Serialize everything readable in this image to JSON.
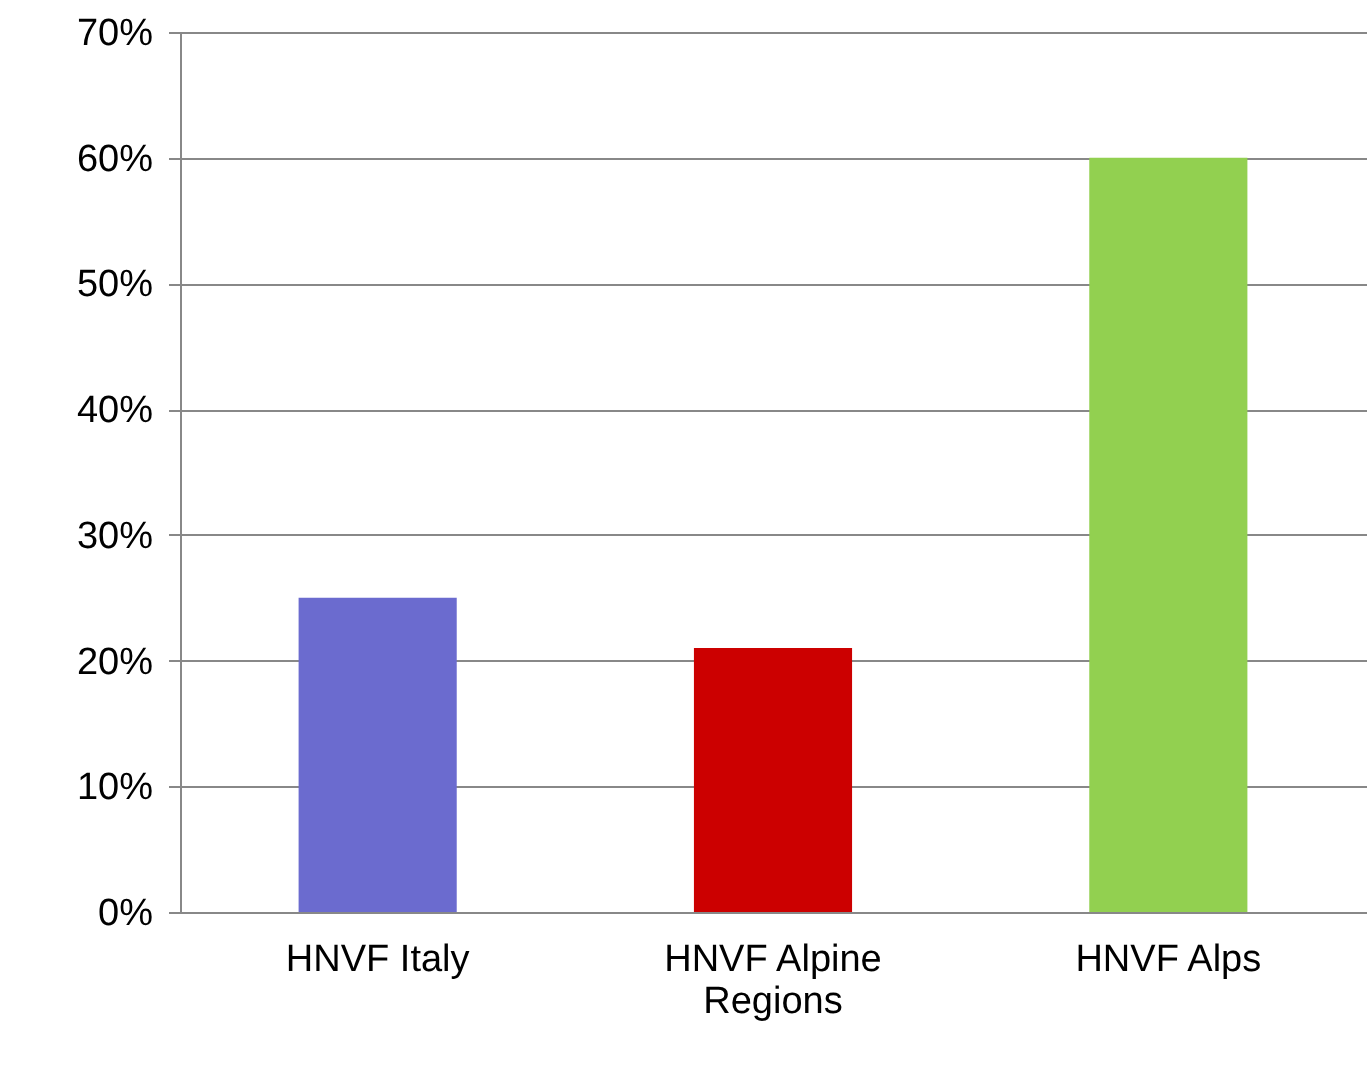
{
  "chart_data": {
    "type": "bar",
    "categories": [
      "HNVF Italy",
      "HNVF Alpine Regions",
      "HNVF Alps"
    ],
    "values": [
      25,
      21,
      60
    ],
    "colors": [
      "#6b6bcf",
      "#cc0000",
      "#92d050"
    ],
    "ylim": [
      0,
      70
    ],
    "yticks": [
      {
        "value": 0,
        "label": "0%"
      },
      {
        "value": 10,
        "label": "10%"
      },
      {
        "value": 20,
        "label": "20%"
      },
      {
        "value": 30,
        "label": "30%"
      },
      {
        "value": 40,
        "label": "40%"
      },
      {
        "value": 50,
        "label": "50%"
      },
      {
        "value": 60,
        "label": "60%"
      },
      {
        "value": 70,
        "label": "70%"
      }
    ],
    "grid": "y"
  }
}
